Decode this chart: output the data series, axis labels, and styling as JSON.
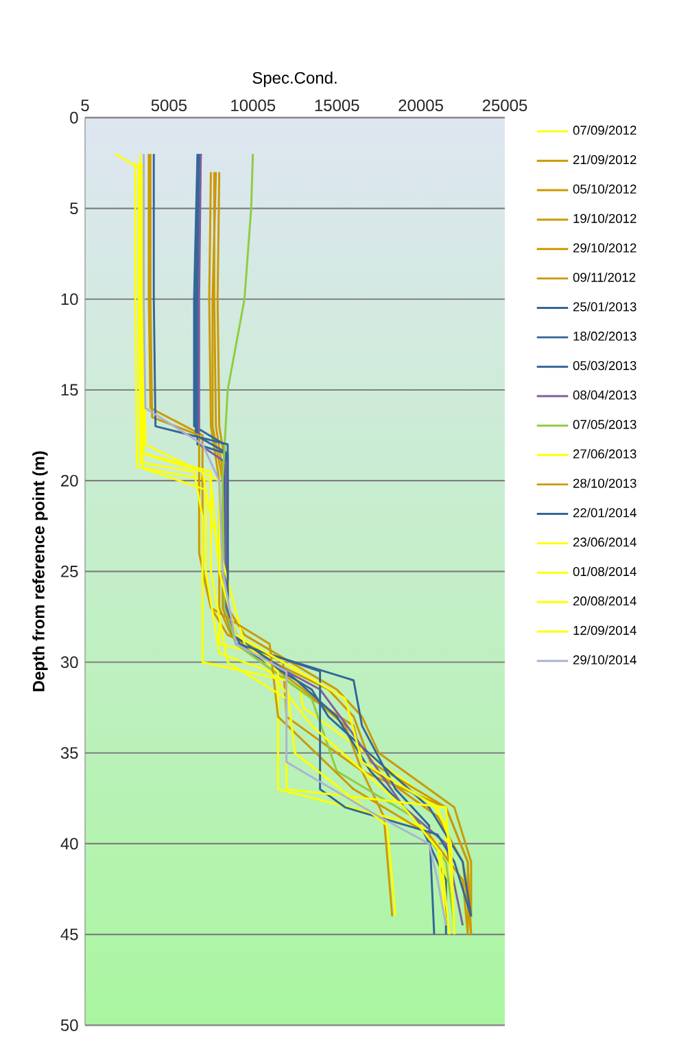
{
  "chart_data": {
    "type": "line",
    "xlabel": "Spec.Cond.",
    "ylabel": "Depth from reference point (m)",
    "xlim": [
      5,
      25005
    ],
    "ylim": [
      50,
      0
    ],
    "xticks": [
      5,
      5005,
      10005,
      15005,
      20005,
      25005
    ],
    "yticks": [
      0,
      5,
      10,
      15,
      20,
      25,
      30,
      35,
      40,
      45,
      50
    ],
    "grid": "y",
    "legend": "right",
    "marker": "none",
    "line_style": "solid",
    "series": [
      {
        "name": "07/09/2012",
        "color": "#ffff00",
        "x": [
          1800,
          3300,
          3300,
          3500,
          7500,
          8000,
          8000,
          12500,
          13000,
          20500,
          21500,
          21500
        ],
        "values": [
          2,
          2.8,
          18,
          19.3,
          20,
          25,
          29,
          30,
          32.5,
          37.5,
          39,
          44.5
        ]
      },
      {
        "name": "21/09/2012",
        "color": "#cc9900",
        "x": [
          7800,
          7600,
          7600,
          8200,
          8200,
          9000,
          13500,
          16000,
          16500,
          21000,
          22500,
          23000
        ],
        "values": [
          3,
          10,
          17,
          20,
          27,
          29,
          32,
          33.5,
          35.5,
          38.5,
          41,
          45
        ]
      },
      {
        "name": "05/10/2012",
        "color": "#cc9900",
        "x": [
          7500,
          7400,
          7500,
          8000,
          8000,
          8700,
          13000,
          15500,
          16500,
          21500,
          22800,
          23000
        ],
        "values": [
          3,
          10,
          17,
          20,
          27,
          28.5,
          31.5,
          33.5,
          36,
          38,
          41,
          45
        ]
      },
      {
        "name": "19/10/2012",
        "color": "#cc9900",
        "x": [
          3800,
          3800,
          3900,
          7000,
          7000,
          7500,
          8500,
          11800,
          12000,
          16500,
          17800,
          18300
        ],
        "values": [
          2,
          10,
          16,
          17.5,
          25,
          27,
          28.5,
          30,
          33,
          36,
          38.5,
          44
        ]
      },
      {
        "name": "29/10/2012",
        "color": "#cc9900",
        "x": [
          7700,
          7700,
          7800,
          8300,
          8300,
          9000,
          14500,
          16000,
          17000,
          21500,
          22800,
          22800
        ],
        "values": [
          3,
          10,
          17,
          20,
          27,
          29,
          31.5,
          33,
          35.5,
          38,
          41,
          45
        ]
      },
      {
        "name": "09/11/2012",
        "color": "#cc9900",
        "x": [
          8000,
          7900,
          8000,
          8500,
          8500,
          9500,
          15000,
          16500,
          17500,
          22000,
          23000,
          23000
        ],
        "values": [
          3,
          10,
          17,
          20,
          27,
          28.5,
          31.5,
          33,
          35,
          38,
          41,
          44
        ]
      },
      {
        "name": "25/01/2013",
        "color": "#336699",
        "x": [
          6800,
          6600,
          6600,
          8500,
          8500,
          9000,
          16000,
          16500,
          18500,
          20500,
          20800
        ],
        "values": [
          2,
          10,
          17.5,
          18.5,
          27,
          29,
          31,
          33.5,
          37,
          39,
          45
        ]
      },
      {
        "name": "18/02/2013",
        "color": "#336699",
        "x": [
          6700,
          6500,
          6500,
          8300,
          8300,
          8800,
          12000,
          15000,
          17000,
          20000,
          21500,
          21500
        ],
        "values": [
          2,
          10,
          17,
          18,
          27,
          28.5,
          30.5,
          33,
          36,
          39,
          42,
          45
        ]
      },
      {
        "name": "05/03/2013",
        "color": "#336699",
        "x": [
          6900,
          6700,
          6700,
          8400,
          8400,
          9000,
          13500,
          14500,
          20500,
          22500,
          23000
        ],
        "values": [
          2,
          10,
          18,
          18.5,
          27,
          29,
          31.5,
          33,
          38,
          41,
          44
        ]
      },
      {
        "name": "08/04/2013",
        "color": "#7f5f9f",
        "x": [
          6900,
          6800,
          6800,
          8400,
          8400,
          9000,
          14000,
          16000,
          19000,
          21500,
          22500
        ],
        "values": [
          2,
          10,
          18,
          19,
          27,
          29,
          31.5,
          34,
          38,
          40,
          44.5
        ]
      },
      {
        "name": "07/05/2013",
        "color": "#8fcc3f",
        "x": [
          10000,
          9900,
          9500,
          8500,
          8200,
          8300,
          9000,
          13500,
          15000,
          19500,
          21500,
          22000
        ],
        "values": [
          2,
          5,
          10,
          15,
          20,
          27,
          29,
          32,
          36,
          38.5,
          41,
          44.5
        ]
      },
      {
        "name": "27/06/2013",
        "color": "#ffff00",
        "x": [
          3300,
          3300,
          3400,
          7000,
          7500,
          9500,
          11500,
          11500,
          20000,
          21000,
          21500
        ],
        "values": [
          2,
          10,
          18.5,
          19.5,
          22,
          29,
          30.5,
          37,
          39,
          40,
          44.5
        ]
      },
      {
        "name": "28/10/2013",
        "color": "#cc9900",
        "x": [
          3900,
          3900,
          4000,
          6800,
          6800,
          7500,
          11000,
          11500,
          16000,
          20500,
          22500,
          22800
        ],
        "values": [
          2,
          10,
          16.5,
          17.5,
          24,
          27,
          29,
          33,
          37,
          39.5,
          42,
          45
        ]
      },
      {
        "name": "22/01/2014",
        "color": "#336699",
        "x": [
          4100,
          4100,
          4200,
          8500,
          8500,
          9200,
          14000,
          14000,
          15500,
          21000,
          22000,
          23000
        ],
        "values": [
          2,
          10,
          17,
          18,
          27,
          29,
          30.5,
          37,
          38,
          39.5,
          41,
          44
        ]
      },
      {
        "name": "23/06/2014",
        "color": "#ffff00",
        "x": [
          3200,
          3200,
          3300,
          6500,
          7000,
          7000,
          12000,
          12500,
          18000,
          18500
        ],
        "values": [
          2.5,
          10,
          19,
          19.5,
          22,
          30,
          31,
          35,
          39,
          44
        ]
      },
      {
        "name": "01/08/2014",
        "color": "#ffff00",
        "x": [
          3500,
          3500,
          3600,
          8000,
          8000,
          9000,
          15500,
          16500,
          21000,
          21800,
          22000
        ],
        "values": [
          2.5,
          10,
          18,
          20,
          25,
          28.5,
          32,
          35.5,
          38,
          40,
          45
        ]
      },
      {
        "name": "20/08/2014",
        "color": "#ffff00",
        "x": [
          3400,
          3400,
          3500,
          7500,
          7500,
          8500,
          12000,
          12000,
          21500,
          22000
        ],
        "values": [
          2.5,
          10,
          18.5,
          19.5,
          25,
          30,
          32,
          37,
          38,
          44.5
        ]
      },
      {
        "name": "12/09/2014",
        "color": "#ffff00",
        "x": [
          3000,
          3000,
          3100,
          7200,
          7200,
          8000,
          11000,
          13500,
          19000,
          21200,
          21700
        ],
        "values": [
          2.5,
          10,
          19.2,
          20.5,
          25,
          29.5,
          30.5,
          33.5,
          38,
          40.5,
          45
        ]
      },
      {
        "name": "29/10/2014",
        "color": "#aab4d0",
        "x": [
          3500,
          3500,
          3600,
          7000,
          8000,
          8200,
          9000,
          12000,
          12000,
          17500,
          20500,
          21000,
          21500
        ],
        "values": [
          2,
          10,
          16,
          18,
          20,
          25,
          29,
          30.5,
          35.5,
          38.5,
          40,
          42,
          44.5
        ]
      }
    ]
  }
}
